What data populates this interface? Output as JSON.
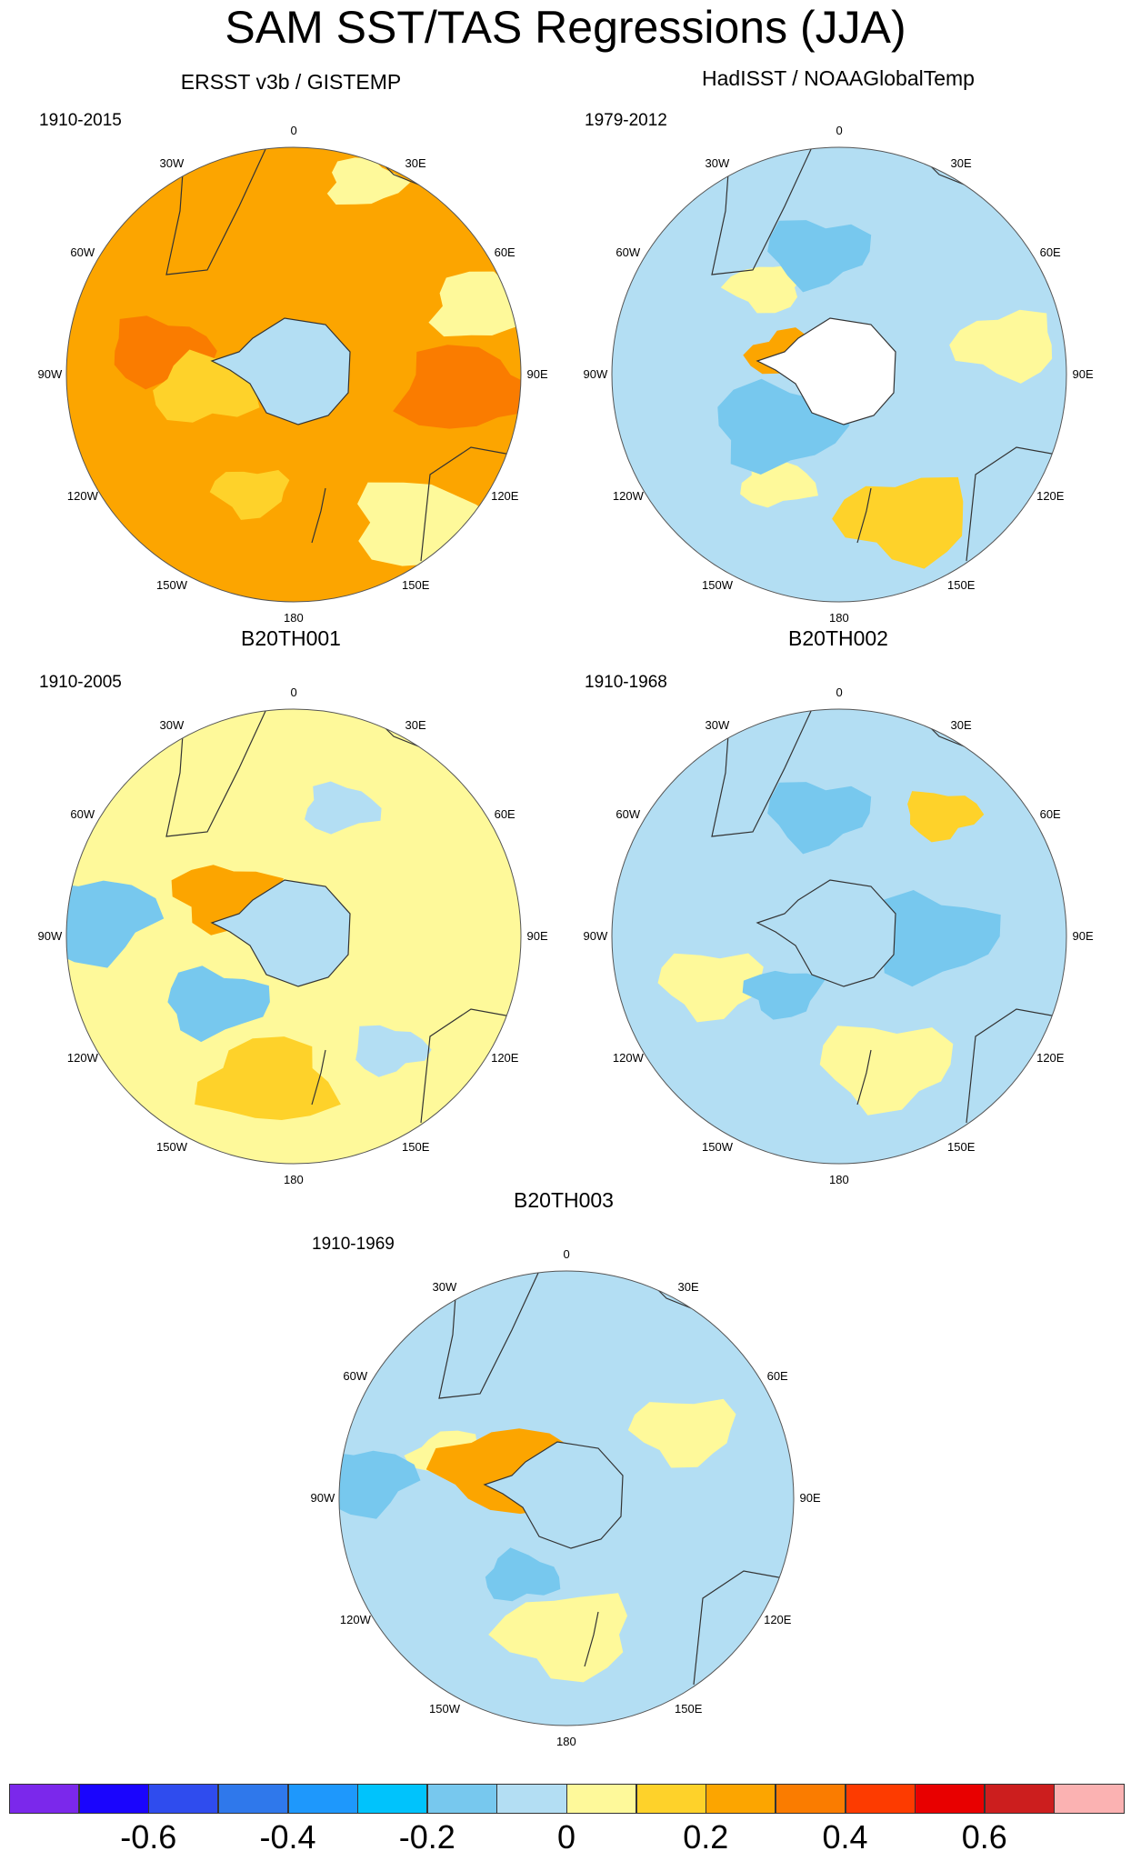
{
  "title": "SAM SST/TAS Regressions (JJA)",
  "panels": [
    {
      "title": "ERSST v3b / GISTEMP",
      "period": "1910-2015",
      "background_color": "#fca500",
      "blobs": [
        {
          "lon": 0,
          "r": 0.05,
          "c": "#fef99a"
        },
        {
          "lon": 70,
          "r": 0.88,
          "c": "#fef99a"
        },
        {
          "lon": 140,
          "r": 0.85,
          "c": "#fef99a"
        },
        {
          "lon": 20,
          "r": 0.9,
          "c": "#fef99a"
        },
        {
          "lon": -80,
          "r": 0.6,
          "c": "#fa7c00"
        },
        {
          "lon": 95,
          "r": 0.75,
          "c": "#fa7c00"
        },
        {
          "lon": -160,
          "r": 0.55,
          "c": "#fed22a"
        },
        {
          "lon": -100,
          "r": 0.4,
          "c": "#fed22a"
        }
      ]
    },
    {
      "title": "HadISST / NOAAGlobalTemp",
      "period": "1979-2012",
      "background_color": "#b3def3",
      "blobs": [
        {
          "lon": -40,
          "r": 0.5,
          "c": "#fef99a"
        },
        {
          "lon": 80,
          "r": 0.75,
          "c": "#fef99a"
        },
        {
          "lon": 155,
          "r": 0.7,
          "c": "#fed22a"
        },
        {
          "lon": -150,
          "r": 0.55,
          "c": "#fef99a"
        },
        {
          "lon": -10,
          "r": 0.55,
          "c": "#77c8ee"
        },
        {
          "lon": -130,
          "r": 0.35,
          "c": "#77c8ee"
        },
        {
          "lon": -70,
          "r": 0.25,
          "c": "#fca500"
        }
      ]
    },
    {
      "title": "B20TH001",
      "period": "1910-2005",
      "background_color": "#fef99a",
      "blobs": [
        {
          "lon": 20,
          "r": 0.6,
          "c": "#b3def3"
        },
        {
          "lon": -130,
          "r": 0.45,
          "c": "#77c8ee"
        },
        {
          "lon": -85,
          "r": 0.9,
          "c": "#77c8ee"
        },
        {
          "lon": 140,
          "r": 0.65,
          "c": "#b3def3"
        },
        {
          "lon": -60,
          "r": 0.35,
          "c": "#fca500"
        },
        {
          "lon": -170,
          "r": 0.65,
          "c": "#fed22a"
        }
      ]
    },
    {
      "title": "B20TH002",
      "period": "1910-1968",
      "background_color": "#b3def3",
      "blobs": [
        {
          "lon": 40,
          "r": 0.7,
          "c": "#fed22a"
        },
        {
          "lon": -110,
          "r": 0.6,
          "c": "#fef99a"
        },
        {
          "lon": 160,
          "r": 0.6,
          "c": "#fef99a"
        },
        {
          "lon": -135,
          "r": 0.35,
          "c": "#77c8ee"
        },
        {
          "lon": -10,
          "r": 0.55,
          "c": "#77c8ee"
        },
        {
          "lon": 90,
          "r": 0.4,
          "c": "#77c8ee"
        }
      ]
    },
    {
      "title": "B20TH003",
      "period": "1910-1969",
      "background_color": "#b3def3",
      "blobs": [
        {
          "lon": -70,
          "r": 0.55,
          "c": "#fef99a"
        },
        {
          "lon": 60,
          "r": 0.6,
          "c": "#fef99a"
        },
        {
          "lon": 180,
          "r": 0.6,
          "c": "#fef99a"
        },
        {
          "lon": -150,
          "r": 0.4,
          "c": "#77c8ee"
        },
        {
          "lon": -85,
          "r": 0.9,
          "c": "#77c8ee"
        },
        {
          "lon": -65,
          "r": 0.3,
          "c": "#fca500"
        }
      ]
    }
  ],
  "longitude_labels": [
    "0",
    "30E",
    "60E",
    "90E",
    "120E",
    "150E",
    "180",
    "150W",
    "120W",
    "90W",
    "60W",
    "30W"
  ],
  "colorbar": {
    "colors": [
      "#7b28eb",
      "#1a05fd",
      "#2f4cee",
      "#2f78eb",
      "#1e98fc",
      "#00c3fc",
      "#77c8ee",
      "#b3def3",
      "#fef99a",
      "#fed22a",
      "#fca500",
      "#fa7c00",
      "#fd3b00",
      "#e80000",
      "#cc1e1e",
      "#fbb2b2"
    ],
    "labels": [
      "-0.6",
      "-0.4",
      "-0.2",
      "0",
      "0.2",
      "0.4",
      "0.6"
    ]
  }
}
